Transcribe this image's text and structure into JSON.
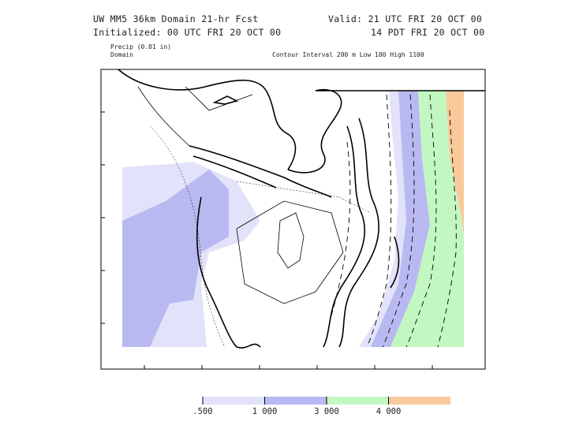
{
  "header": {
    "title": "UW MM5 36km Domain  21-hr Fcst",
    "initialized": "Initialized: 00 UTC FRI 20 OCT 00",
    "valid_utc": "Valid: 21 UTC FRI 20 OCT 00",
    "valid_local": "14 PDT FRI 20 OCT 00",
    "field": "Precip (0.01 in)",
    "domain": "Domain",
    "contour": "Contour Interval  200 m  Low   100 High   1100"
  },
  "colorbar": {
    "items": [
      {
        "label": ".500",
        "color": "#e2e2fa"
      },
      {
        "label": "1 000",
        "color": "#b9b9f2"
      },
      {
        "label": "3 000",
        "color": "#c2f7c2"
      },
      {
        "label": "4 000",
        "color": "#f9c99a"
      }
    ]
  }
}
